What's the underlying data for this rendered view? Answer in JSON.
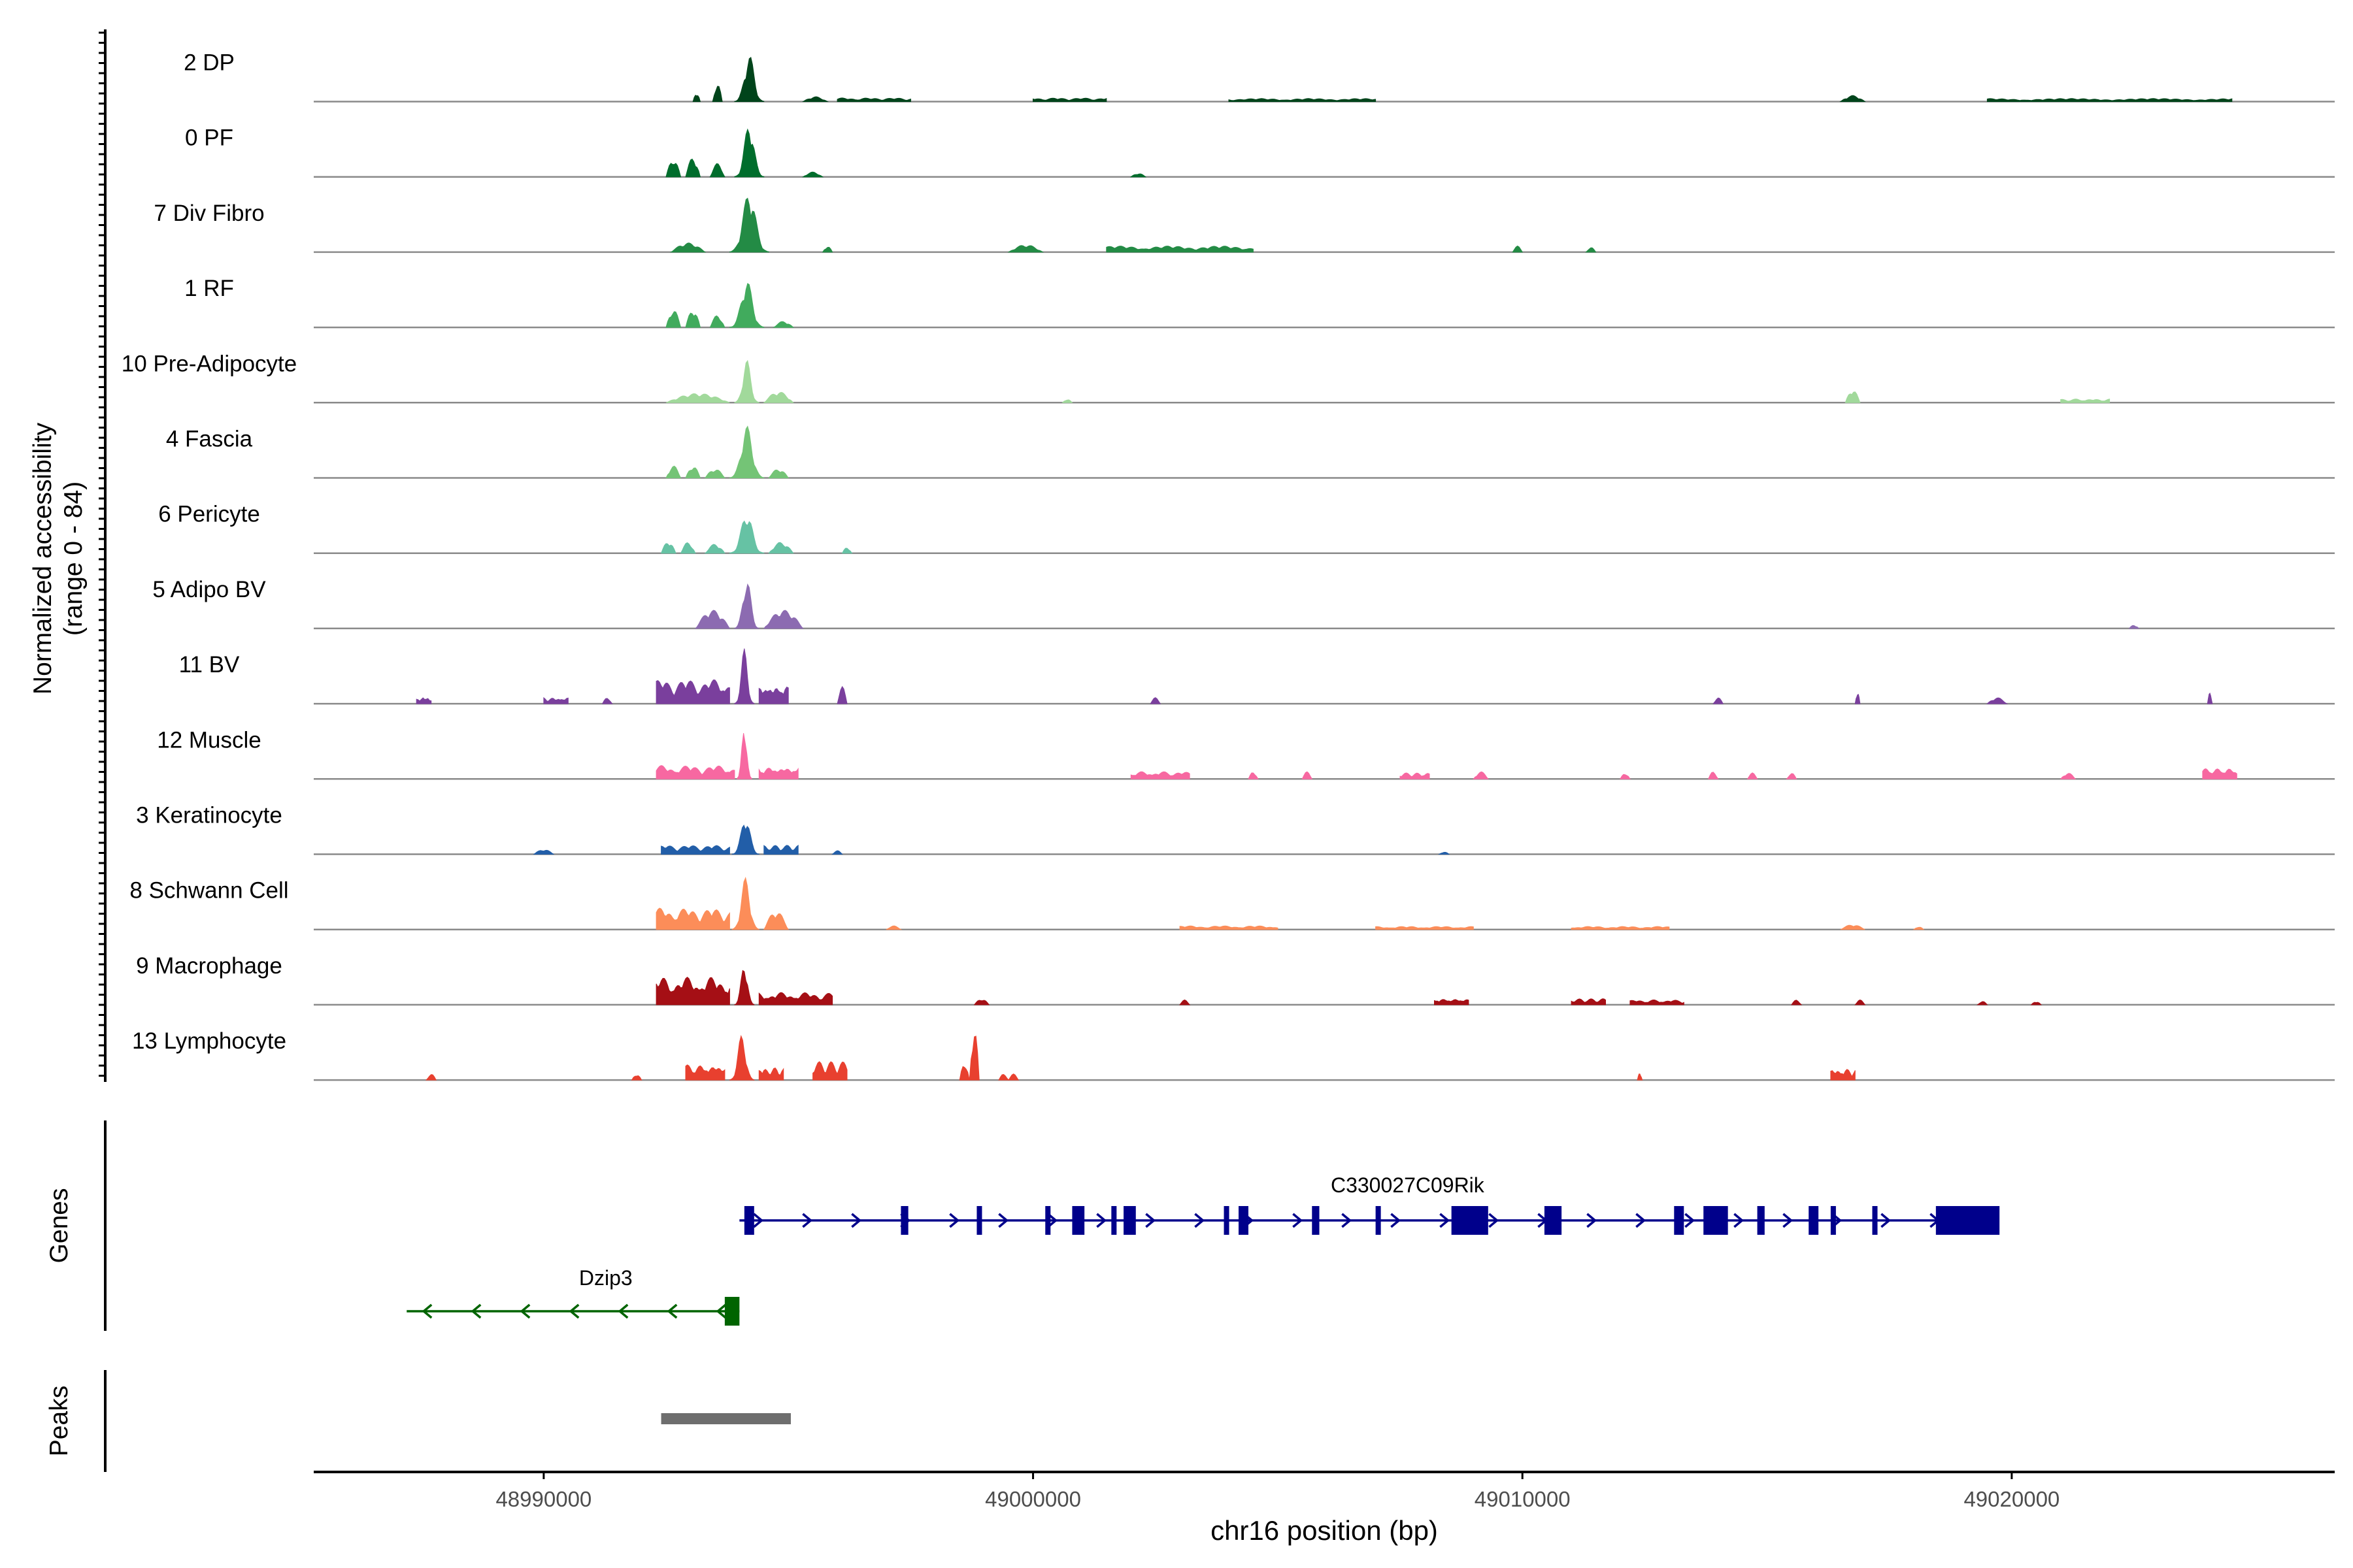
{
  "chart_data": {
    "type": "coverage-track",
    "y_axis_label_line1": "Normalized accessibility",
    "y_axis_label_line2": "(range 0 - 84)",
    "ylim": [
      0,
      84
    ],
    "xlabel": "chr16 position (bp)",
    "xlim": [
      48985300,
      49026600
    ],
    "x_ticks": [
      48990000,
      49000000,
      49010000,
      49020000
    ],
    "x_tick_labels": [
      "48990000",
      "49000000",
      "49010000",
      "49020000"
    ],
    "genes_label": "Genes",
    "peaks_label": "Peaks",
    "tracks": [
      {
        "name": "2 DP",
        "color": "#00441b",
        "peaks": [
          [
            48993900,
            48994500,
            0.78,
            "m"
          ],
          [
            48993450,
            48993650,
            0.3,
            "s"
          ],
          [
            48993050,
            48993200,
            0.15,
            "s"
          ],
          [
            48995300,
            48995800,
            0.08,
            "s"
          ],
          [
            48996000,
            48997500,
            0.06,
            "n"
          ],
          [
            49000000,
            49001500,
            0.06,
            "n"
          ],
          [
            49004000,
            49007000,
            0.05,
            "n"
          ],
          [
            49016500,
            49017000,
            0.1,
            "s"
          ],
          [
            49019500,
            49024500,
            0.05,
            "n"
          ]
        ]
      },
      {
        "name": "0 PF",
        "color": "#006d2c",
        "peaks": [
          [
            48993900,
            48994500,
            0.9,
            "m"
          ],
          [
            48992500,
            48992800,
            0.3,
            "s"
          ],
          [
            48992900,
            48993200,
            0.32,
            "s"
          ],
          [
            48993400,
            48993700,
            0.22,
            "s"
          ],
          [
            48995300,
            48995700,
            0.08,
            "s"
          ],
          [
            49002000,
            49002300,
            0.06,
            "s"
          ]
        ]
      },
      {
        "name": "7 Div Fibro",
        "color": "#238b45",
        "peaks": [
          [
            48993800,
            48994600,
            1.0,
            "m"
          ],
          [
            48992600,
            48993300,
            0.15,
            "s"
          ],
          [
            48995700,
            48995900,
            0.1,
            "s"
          ],
          [
            48999500,
            49000200,
            0.12,
            "s"
          ],
          [
            49001500,
            49004500,
            0.1,
            "n"
          ],
          [
            49009800,
            49010000,
            0.1,
            "s"
          ],
          [
            49011300,
            49011500,
            0.08,
            "s"
          ]
        ]
      },
      {
        "name": "1 RF",
        "color": "#41ab5d",
        "peaks": [
          [
            48993800,
            48994500,
            0.78,
            "m"
          ],
          [
            48992500,
            48992800,
            0.3,
            "s"
          ],
          [
            48992900,
            48993200,
            0.3,
            "s"
          ],
          [
            48993400,
            48993700,
            0.2,
            "s"
          ],
          [
            48994700,
            48995100,
            0.1,
            "s"
          ]
        ]
      },
      {
        "name": "10 Pre-Adipocyte",
        "color": "#a1d99b",
        "peaks": [
          [
            48993900,
            48994400,
            0.7,
            "m"
          ],
          [
            48992500,
            48993800,
            0.15,
            "s"
          ],
          [
            48994500,
            48995100,
            0.18,
            "s"
          ],
          [
            49000600,
            49000800,
            0.06,
            "s"
          ],
          [
            49016600,
            49016900,
            0.22,
            "s"
          ],
          [
            49021000,
            49022000,
            0.06,
            "n"
          ]
        ]
      },
      {
        "name": "4 Fascia",
        "color": "#74c476",
        "peaks": [
          [
            48993800,
            48994500,
            0.85,
            "m"
          ],
          [
            48992500,
            48992800,
            0.2,
            "s"
          ],
          [
            48992900,
            48993200,
            0.2,
            "s"
          ],
          [
            48993300,
            48993700,
            0.15,
            "s"
          ],
          [
            48994600,
            48995000,
            0.15,
            "s"
          ]
        ]
      },
      {
        "name": "6 Pericyte",
        "color": "#66c2a4",
        "peaks": [
          [
            48993800,
            48994500,
            0.68,
            "m"
          ],
          [
            48992400,
            48992700,
            0.2,
            "s"
          ],
          [
            48992800,
            48993100,
            0.18,
            "s"
          ],
          [
            48993300,
            48993700,
            0.15,
            "s"
          ],
          [
            48994600,
            48995100,
            0.18,
            "s"
          ],
          [
            48996100,
            48996300,
            0.1,
            "s"
          ]
        ]
      },
      {
        "name": "5 Adipo BV",
        "color": "#8c6bb1",
        "peaks": [
          [
            48993900,
            48994400,
            0.85,
            "m"
          ],
          [
            48993100,
            48993800,
            0.3,
            "s"
          ],
          [
            48994500,
            48995300,
            0.3,
            "s"
          ],
          [
            49022400,
            49022600,
            0.06,
            "s"
          ]
        ]
      },
      {
        "name": "11 BV",
        "color": "#7a3f9d",
        "peaks": [
          [
            48993900,
            48994300,
            0.9,
            "m"
          ],
          [
            48992300,
            48993800,
            0.4,
            "n"
          ],
          [
            48994400,
            48995000,
            0.3,
            "n"
          ],
          [
            48996000,
            48996200,
            0.28,
            "s"
          ],
          [
            48987400,
            48987700,
            0.1,
            "n"
          ],
          [
            48990000,
            48990500,
            0.1,
            "n"
          ],
          [
            48991200,
            48991400,
            0.1,
            "s"
          ],
          [
            49002400,
            49002600,
            0.1,
            "s"
          ],
          [
            49013900,
            49014100,
            0.1,
            "s"
          ],
          [
            49016800,
            49016900,
            0.2,
            "s"
          ],
          [
            49019500,
            49019900,
            0.1,
            "s"
          ],
          [
            49024000,
            49024100,
            0.18,
            "s"
          ]
        ]
      },
      {
        "name": "12 Muscle",
        "color": "#f768a1",
        "peaks": [
          [
            48993950,
            48994250,
            1.0,
            "m"
          ],
          [
            48992300,
            48993900,
            0.22,
            "n"
          ],
          [
            48994400,
            48995200,
            0.2,
            "n"
          ],
          [
            49002000,
            49003200,
            0.12,
            "n"
          ],
          [
            49004400,
            49004600,
            0.12,
            "s"
          ],
          [
            49005500,
            49005700,
            0.12,
            "s"
          ],
          [
            49007500,
            49008100,
            0.1,
            "n"
          ],
          [
            49009000,
            49009300,
            0.12,
            "s"
          ],
          [
            49012000,
            49012200,
            0.1,
            "s"
          ],
          [
            49013800,
            49014000,
            0.12,
            "s"
          ],
          [
            49014600,
            49014800,
            0.1,
            "s"
          ],
          [
            49015400,
            49015600,
            0.1,
            "s"
          ],
          [
            49021000,
            49021300,
            0.1,
            "s"
          ],
          [
            49023900,
            49024600,
            0.18,
            "n"
          ]
        ]
      },
      {
        "name": "3 Keratinocyte",
        "color": "#225ea8",
        "peaks": [
          [
            48993850,
            48994400,
            0.65,
            "m"
          ],
          [
            48992400,
            48993800,
            0.15,
            "n"
          ],
          [
            48994500,
            48995200,
            0.15,
            "n"
          ],
          [
            48989800,
            48990200,
            0.08,
            "s"
          ],
          [
            48995900,
            48996100,
            0.06,
            "s"
          ],
          [
            49008300,
            49008500,
            0.04,
            "s"
          ]
        ]
      },
      {
        "name": "8 Schwann Cell",
        "color": "#fc8d59",
        "peaks": [
          [
            48993850,
            48994400,
            0.85,
            "m"
          ],
          [
            48992300,
            48993800,
            0.35,
            "n"
          ],
          [
            48994500,
            48995000,
            0.3,
            "s"
          ],
          [
            48997000,
            48997300,
            0.06,
            "s"
          ],
          [
            49003000,
            49005000,
            0.06,
            "n"
          ],
          [
            49007000,
            49009000,
            0.05,
            "n"
          ],
          [
            49011000,
            49013000,
            0.05,
            "n"
          ],
          [
            49016500,
            49017000,
            0.08,
            "s"
          ],
          [
            49018000,
            49018200,
            0.05,
            "s"
          ]
        ]
      },
      {
        "name": "9 Macrophage",
        "color": "#a50f15",
        "peaks": [
          [
            48993900,
            48994300,
            0.72,
            "m"
          ],
          [
            48992300,
            48993800,
            0.45,
            "n"
          ],
          [
            48994400,
            48995900,
            0.2,
            "n"
          ],
          [
            48998800,
            48999100,
            0.1,
            "s"
          ],
          [
            49003000,
            49003200,
            0.08,
            "s"
          ],
          [
            49008200,
            49008900,
            0.1,
            "n"
          ],
          [
            49011000,
            49011700,
            0.1,
            "n"
          ],
          [
            49012200,
            49013300,
            0.08,
            "n"
          ],
          [
            49015500,
            49015700,
            0.08,
            "s"
          ],
          [
            49016800,
            49017000,
            0.08,
            "s"
          ],
          [
            49019300,
            49019500,
            0.06,
            "s"
          ],
          [
            49020400,
            49020600,
            0.06,
            "s"
          ]
        ]
      },
      {
        "name": "13 Lymphocyte",
        "color": "#e8402f",
        "peaks": [
          [
            48993800,
            48994300,
            0.75,
            "m"
          ],
          [
            48992900,
            48993700,
            0.25,
            "n"
          ],
          [
            48994400,
            48994900,
            0.2,
            "n"
          ],
          [
            48995500,
            48996200,
            0.3,
            "n"
          ],
          [
            48998700,
            48998900,
            0.9,
            "s"
          ],
          [
            48998500,
            48998700,
            0.3,
            "s"
          ],
          [
            48999300,
            48999500,
            0.1,
            "s"
          ],
          [
            48999500,
            48999700,
            0.1,
            "s"
          ],
          [
            48987600,
            48987800,
            0.1,
            "s"
          ],
          [
            48991800,
            48992000,
            0.1,
            "s"
          ],
          [
            49012350,
            49012450,
            0.12,
            "s"
          ],
          [
            49016300,
            49016800,
            0.18,
            "n"
          ]
        ]
      }
    ],
    "genes": [
      {
        "name": "C330027C09Rik",
        "strand": "+",
        "color": "#00008b",
        "start": 48994000,
        "end": 49019700,
        "exons": [
          [
            48994100,
            48994300
          ],
          [
            48997300,
            48997450
          ],
          [
            48998850,
            48998950
          ],
          [
            49000250,
            49000320
          ],
          [
            49000800,
            49001050
          ],
          [
            49001600,
            49001700
          ],
          [
            49001850,
            49002100
          ],
          [
            49003900,
            49003980
          ],
          [
            49004200,
            49004400
          ],
          [
            49005700,
            49005850
          ],
          [
            49007000,
            49007100
          ],
          [
            49008550,
            49009300
          ],
          [
            49010450,
            49010800
          ],
          [
            49013100,
            49013300
          ],
          [
            49013700,
            49014200
          ],
          [
            49014800,
            49014950
          ],
          [
            49015850,
            49016050
          ],
          [
            49016300,
            49016350
          ],
          [
            49017150,
            49017250
          ],
          [
            49018450,
            49019750
          ]
        ]
      },
      {
        "name": "Dzip3",
        "strand": "-",
        "color": "#006400",
        "start": 48987200,
        "end": 48994000,
        "exons": [
          [
            48993700,
            48994000
          ]
        ]
      }
    ],
    "peak_regions": [
      [
        48992400,
        48995050
      ]
    ],
    "peak_color": "#6e6e6e"
  }
}
